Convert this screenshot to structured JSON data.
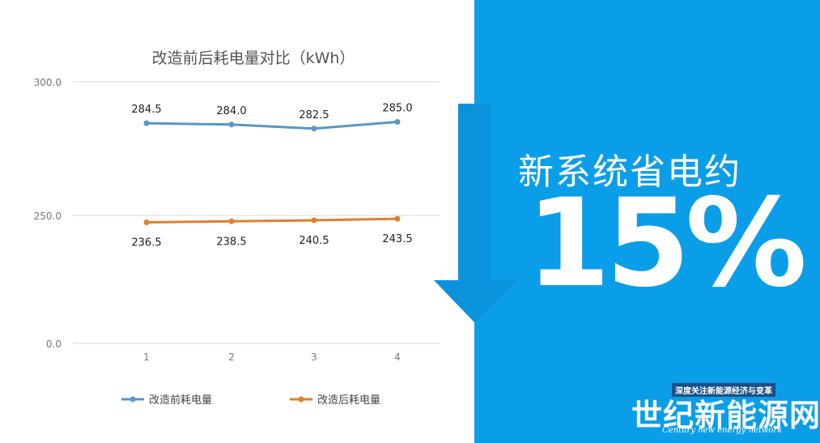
{
  "chart_data": {
    "type": "line",
    "title": "改造前后耗电量对比（kWh）",
    "xlabel": "",
    "ylabel": "",
    "x": [
      "1",
      "2",
      "3",
      "4"
    ],
    "y_ticks": [
      "300.0",
      "250.0",
      "0.0"
    ],
    "axis_break": true,
    "grid": true,
    "legend_position": "bottom",
    "series": [
      {
        "name": "改造前耗电量",
        "values": [
          284.5,
          284.0,
          282.5,
          285.0
        ],
        "labels": [
          "284.5",
          "284.0",
          "282.5",
          "285.0"
        ],
        "color": "#5b96c5"
      },
      {
        "name": "改造后耗电量",
        "values": [
          236.5,
          238.5,
          240.5,
          243.5
        ],
        "labels": [
          "236.5",
          "238.5",
          "240.5",
          "243.5"
        ],
        "color": "#e07f2c"
      }
    ]
  },
  "headline": "新系统省电约",
  "big_number": "15%",
  "watermark": {
    "tag": "深度关注新能源经济与变革",
    "name": "世纪新能源网",
    "english": "Century new energy network"
  },
  "colors": {
    "background_blue": "#0b9ee8",
    "arrow_blue": "#0a93dc"
  }
}
